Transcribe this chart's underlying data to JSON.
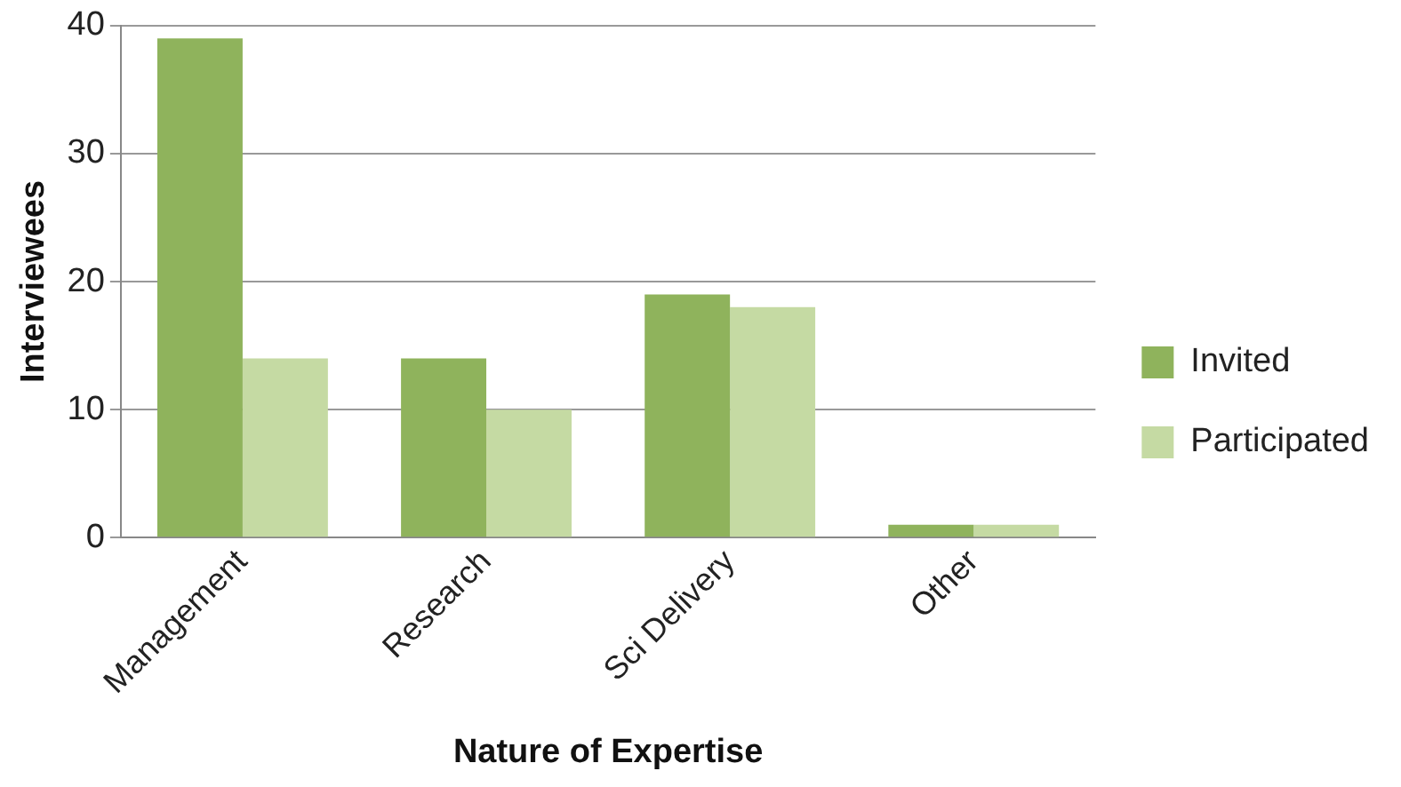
{
  "chart_data": {
    "type": "bar",
    "xlabel": "Nature of Expertise",
    "ylabel": "Interviewees",
    "categories": [
      "Management",
      "Research",
      "Sci Delivery",
      "Other"
    ],
    "series": [
      {
        "name": "Invited",
        "color": "#8fb35c",
        "values": [
          39,
          14,
          19,
          1
        ]
      },
      {
        "name": "Participated",
        "color": "#c5daa3",
        "values": [
          14,
          10,
          18,
          1
        ]
      }
    ],
    "ylim": [
      0,
      40
    ],
    "yticks": [
      0,
      10,
      20,
      30,
      40
    ],
    "grid": "y",
    "legend": "right"
  }
}
